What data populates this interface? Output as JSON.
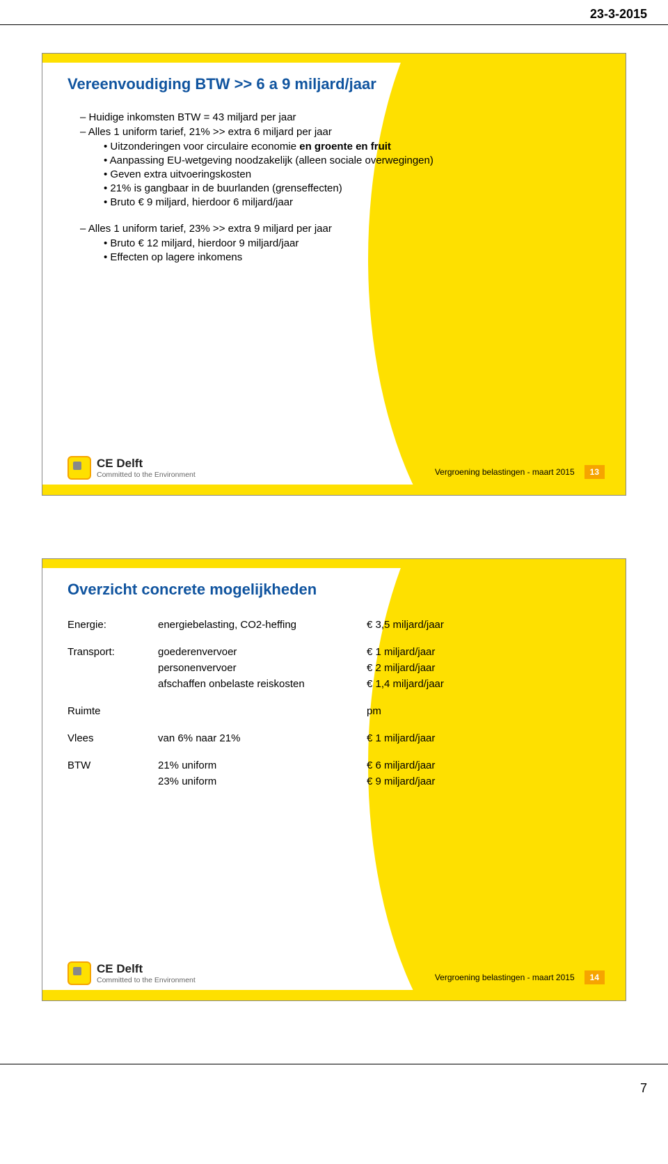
{
  "page": {
    "date": "23-3-2015",
    "doc_page_number": "7"
  },
  "logo": {
    "name": "CE Delft",
    "caption": "Committed to the Environment"
  },
  "footer": {
    "text": "Vergroening belastingen - maart 2015"
  },
  "colors": {
    "accent_yellow": "#fee000",
    "accent_orange": "#f6a400",
    "title_blue": "#10549f",
    "text_black": "#000000",
    "caption_grey": "#666666",
    "background": "#ffffff"
  },
  "typography": {
    "title_fontsize_pt": 17,
    "body_fontsize_pt": 11,
    "font_family": "Arial"
  },
  "slide1": {
    "number": "13",
    "title": "Vereenvoudiging BTW >> 6 a 9 miljard/jaar",
    "b1": "Huidige inkomsten BTW = 43 miljard per jaar",
    "b2": "Alles 1 uniform tarief, 21% >> extra 6 miljard per jaar",
    "b2_1_pre": "Uitzonderingen voor circulaire economie ",
    "b2_1_bold": "en groente en fruit",
    "b2_2": "Aanpassing EU-wetgeving noodzakelijk (alleen sociale overwegingen)",
    "b2_3": "Geven extra uitvoeringskosten",
    "b2_4": "21% is gangbaar in de buurlanden (grenseffecten)",
    "b2_5": "Bruto € 9 miljard, hierdoor 6 miljard/jaar",
    "b3": "Alles 1 uniform tarief, 23% >> extra 9 miljard per jaar",
    "b3_1": "Bruto € 12 miljard, hierdoor 9 miljard/jaar",
    "b3_2": "Effecten op lagere inkomens"
  },
  "slide2": {
    "number": "14",
    "title": "Overzicht concrete mogelijkheden",
    "rows": [
      {
        "c1": "Energie:",
        "c2": "energiebelasting, CO2-heffing",
        "c3": "€ 3,5 miljard/jaar"
      },
      {
        "gap": true
      },
      {
        "c1": "Transport:",
        "c2": "goederenvervoer",
        "c3": "€ 1 miljard/jaar"
      },
      {
        "c1": "",
        "c2": "personenvervoer",
        "c3": "€ 2 miljard/jaar"
      },
      {
        "c1": "",
        "c2": "afschaffen onbelaste reiskosten",
        "c3": "€ 1,4 miljard/jaar"
      },
      {
        "gap": true
      },
      {
        "c1": "Ruimte",
        "c2": "",
        "c3": "pm"
      },
      {
        "gap": true
      },
      {
        "c1": "Vlees",
        "c2": "van 6% naar 21%",
        "c3": "€ 1 miljard/jaar"
      },
      {
        "gap": true
      },
      {
        "c1": "BTW",
        "c2": "21% uniform",
        "c3": "€ 6 miljard/jaar"
      },
      {
        "c1": "",
        "c2": "23% uniform",
        "c3": "€ 9 miljard/jaar"
      }
    ]
  }
}
